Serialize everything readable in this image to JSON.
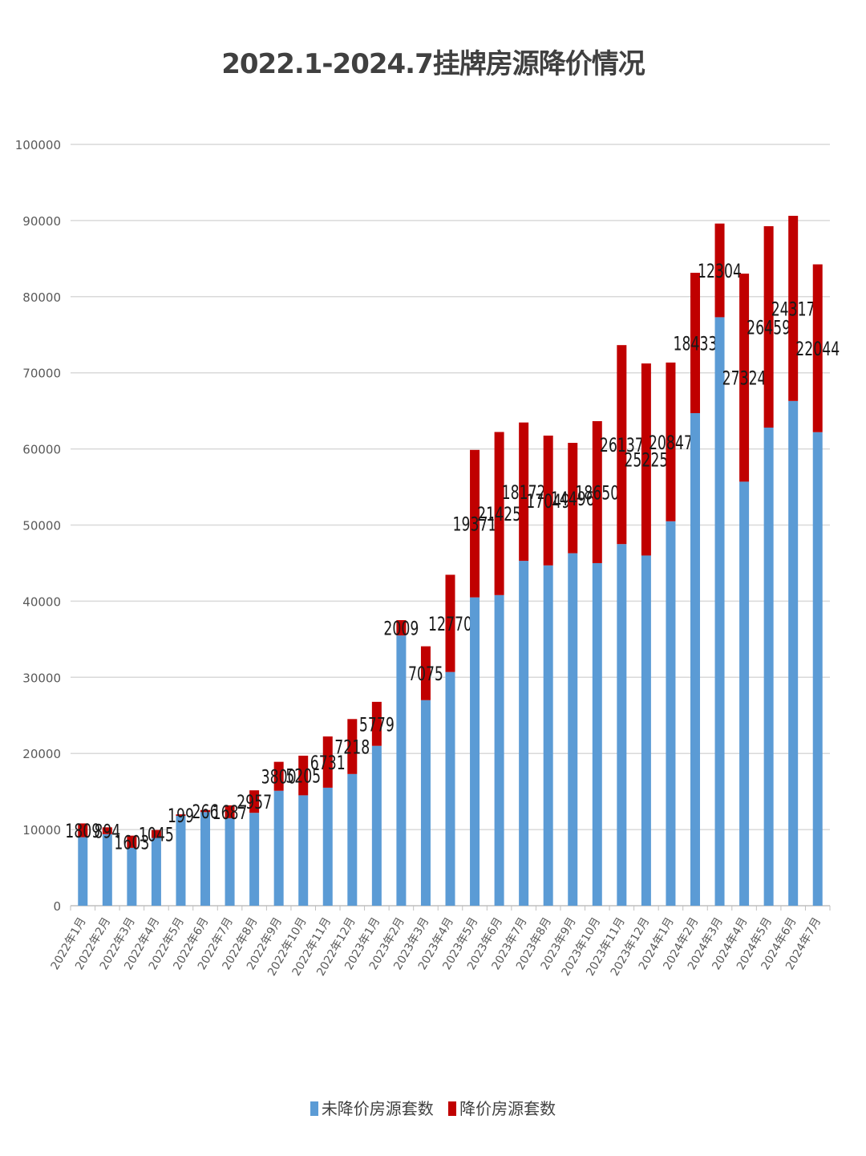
{
  "chart_data": {
    "type": "bar",
    "stacked": true,
    "title": "2022.1-2024.7挂牌房源降价情况",
    "xlabel": "",
    "ylabel": "",
    "ylim": [
      0,
      100000
    ],
    "yticks": [
      0,
      10000,
      20000,
      30000,
      40000,
      50000,
      60000,
      70000,
      80000,
      90000,
      100000
    ],
    "grid": true,
    "legend_position": "bottom",
    "categories": [
      "2022年1月",
      "2022年2月",
      "2022年3月",
      "2022年4月",
      "2022年5月",
      "2022年6月",
      "2022年7月",
      "2022年8月",
      "2022年9月",
      "2022年10月",
      "2022年11月",
      "2022年12月",
      "2023年1月",
      "2023年2月",
      "2023年3月",
      "2023年4月",
      "2023年5月",
      "2023年6月",
      "2023年7月",
      "2023年8月",
      "2023年9月",
      "2023年10月",
      "2023年11月",
      "2023年12月",
      "2024年1月",
      "2024年2月",
      "2024年3月",
      "2024年4月",
      "2024年5月",
      "2024年6月",
      "2024年7月"
    ],
    "series": [
      {
        "name": "未降价房源套数",
        "color": "#5B9BD5",
        "values": [
          9000,
          9400,
          7600,
          8900,
          11800,
          12300,
          11500,
          12200,
          15100,
          14500,
          15500,
          17300,
          21000,
          35500,
          27000,
          30700,
          40500,
          40800,
          45300,
          44700,
          46300,
          45000,
          47500,
          46000,
          50500,
          64700,
          77300,
          55700,
          62800,
          66300,
          62200
        ]
      },
      {
        "name": "降价房源套数",
        "color": "#C00000",
        "values": [
          1809,
          894,
          1603,
          1045,
          199,
          266,
          1687,
          2957,
          3800,
          5205,
          6731,
          7218,
          5779,
          2009,
          7075,
          12770,
          19371,
          21425,
          18172,
          17049,
          14496,
          18650,
          26137,
          25225,
          20847,
          18433,
          12304,
          27324,
          26459,
          24317,
          22044
        ]
      }
    ],
    "data_labels": [
      "1809",
      "894",
      "1603",
      "1045",
      "199",
      "266",
      "1687",
      "2957",
      "3800",
      "5205",
      "6731",
      "7218",
      "5779",
      "2009",
      "7075",
      "12770",
      "19371",
      "21425",
      "18172",
      "17049",
      "14496",
      "18650",
      "26137",
      "25225",
      "20847",
      "18433",
      "12304",
      "27324",
      "26459",
      "24317",
      "22044"
    ]
  }
}
